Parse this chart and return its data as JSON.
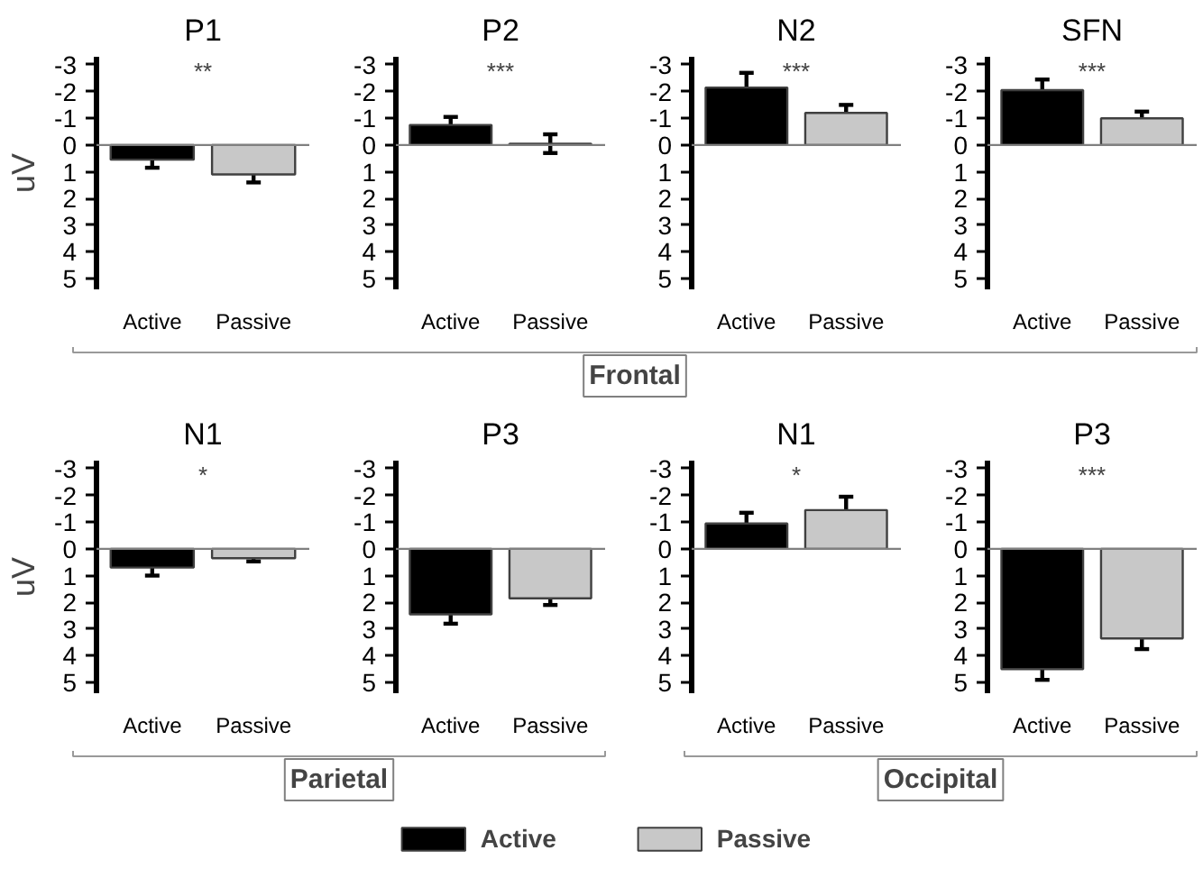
{
  "chart_data": [
    {
      "type": "bar",
      "title": "P1",
      "ylabel": "uV",
      "categories": [
        "Active",
        "Passive"
      ],
      "series": [
        {
          "name": "Active",
          "color": "#000000",
          "values": [
            0.55,
            null
          ],
          "errors": [
            0.3,
            null
          ]
        },
        {
          "name": "Passive",
          "color": "#c8c8c8",
          "values": [
            null,
            1.1
          ],
          "errors": [
            null,
            0.3
          ]
        }
      ],
      "ylim": [
        5.4,
        -3.3
      ],
      "yticks": [
        -3,
        -2,
        -1,
        0,
        1,
        2,
        3,
        4,
        5
      ],
      "annotations": [
        "**",
        "Frontal"
      ],
      "legend": "bottom"
    },
    {
      "type": "bar",
      "title": "P2",
      "categories": [
        "Active",
        "Passive"
      ],
      "series": [
        {
          "name": "Active",
          "color": "#000000",
          "values": [
            -0.75,
            null
          ],
          "errors": [
            0.3,
            null
          ]
        },
        {
          "name": "Passive",
          "color": "#c8c8c8",
          "values": [
            null,
            -0.05
          ],
          "errors": [
            null,
            0.35
          ]
        }
      ],
      "ylim": [
        5.4,
        -3.3
      ],
      "yticks": [
        -3,
        -2,
        -1,
        0,
        1,
        2,
        3,
        4,
        5
      ],
      "annotations": [
        "***"
      ],
      "legend": "bottom"
    },
    {
      "type": "bar",
      "title": "N2",
      "categories": [
        "Active",
        "Passive"
      ],
      "series": [
        {
          "name": "Active",
          "color": "#000000",
          "values": [
            -2.15,
            null
          ],
          "errors": [
            0.55,
            null
          ]
        },
        {
          "name": "Passive",
          "color": "#c8c8c8",
          "values": [
            null,
            -1.2
          ],
          "errors": [
            null,
            0.3
          ]
        }
      ],
      "ylim": [
        5.4,
        -3.3
      ],
      "yticks": [
        -3,
        -2,
        -1,
        0,
        1,
        2,
        3,
        4,
        5
      ],
      "annotations": [
        "***"
      ],
      "legend": "bottom"
    },
    {
      "type": "bar",
      "title": "SFN",
      "categories": [
        "Active",
        "Passive"
      ],
      "series": [
        {
          "name": "Active",
          "color": "#000000",
          "values": [
            -2.05,
            null
          ],
          "errors": [
            0.4,
            null
          ]
        },
        {
          "name": "Passive",
          "color": "#c8c8c8",
          "values": [
            null,
            -1.0
          ],
          "errors": [
            null,
            0.25
          ]
        }
      ],
      "ylim": [
        5.4,
        -3.3
      ],
      "yticks": [
        -3,
        -2,
        -1,
        0,
        1,
        2,
        3,
        4,
        5
      ],
      "annotations": [
        "***"
      ],
      "legend": "bottom"
    },
    {
      "type": "bar",
      "title": "N1",
      "ylabel": "uV",
      "categories": [
        "Active",
        "Passive"
      ],
      "series": [
        {
          "name": "Active",
          "color": "#000000",
          "values": [
            0.7,
            null
          ],
          "errors": [
            0.3,
            null
          ]
        },
        {
          "name": "Passive",
          "color": "#c8c8c8",
          "values": [
            null,
            0.35
          ],
          "errors": [
            null,
            0.12
          ]
        }
      ],
      "ylim": [
        5.4,
        -3.3
      ],
      "yticks": [
        -3,
        -2,
        -1,
        0,
        1,
        2,
        3,
        4,
        5
      ],
      "annotations": [
        "*",
        "Parietal"
      ],
      "legend": "bottom"
    },
    {
      "type": "bar",
      "title": "P3",
      "categories": [
        "Active",
        "Passive"
      ],
      "series": [
        {
          "name": "Active",
          "color": "#000000",
          "values": [
            2.45,
            null
          ],
          "errors": [
            0.35,
            null
          ]
        },
        {
          "name": "Passive",
          "color": "#c8c8c8",
          "values": [
            null,
            1.85
          ],
          "errors": [
            null,
            0.25
          ]
        }
      ],
      "ylim": [
        5.4,
        -3.3
      ],
      "yticks": [
        -3,
        -2,
        -1,
        0,
        1,
        2,
        3,
        4,
        5
      ],
      "legend": "bottom"
    },
    {
      "type": "bar",
      "title": "N1",
      "categories": [
        "Active",
        "Passive"
      ],
      "series": [
        {
          "name": "Active",
          "color": "#000000",
          "values": [
            -0.95,
            null
          ],
          "errors": [
            0.4,
            null
          ]
        },
        {
          "name": "Passive",
          "color": "#c8c8c8",
          "values": [
            null,
            -1.45
          ],
          "errors": [
            null,
            0.5
          ]
        }
      ],
      "ylim": [
        5.4,
        -3.3
      ],
      "yticks": [
        -3,
        -2,
        -1,
        0,
        1,
        2,
        3,
        4,
        5
      ],
      "annotations": [
        "*",
        "Occipital"
      ],
      "legend": "bottom"
    },
    {
      "type": "bar",
      "title": "P3",
      "categories": [
        "Active",
        "Passive"
      ],
      "series": [
        {
          "name": "Active",
          "color": "#000000",
          "values": [
            4.5,
            null
          ],
          "errors": [
            0.4,
            null
          ]
        },
        {
          "name": "Passive",
          "color": "#c8c8c8",
          "values": [
            null,
            3.35
          ],
          "errors": [
            null,
            0.4
          ]
        }
      ],
      "ylim": [
        5.4,
        -3.3
      ],
      "yticks": [
        -3,
        -2,
        -1,
        0,
        1,
        2,
        3,
        4,
        5
      ],
      "annotations": [
        "***"
      ],
      "legend": "bottom"
    }
  ]
}
